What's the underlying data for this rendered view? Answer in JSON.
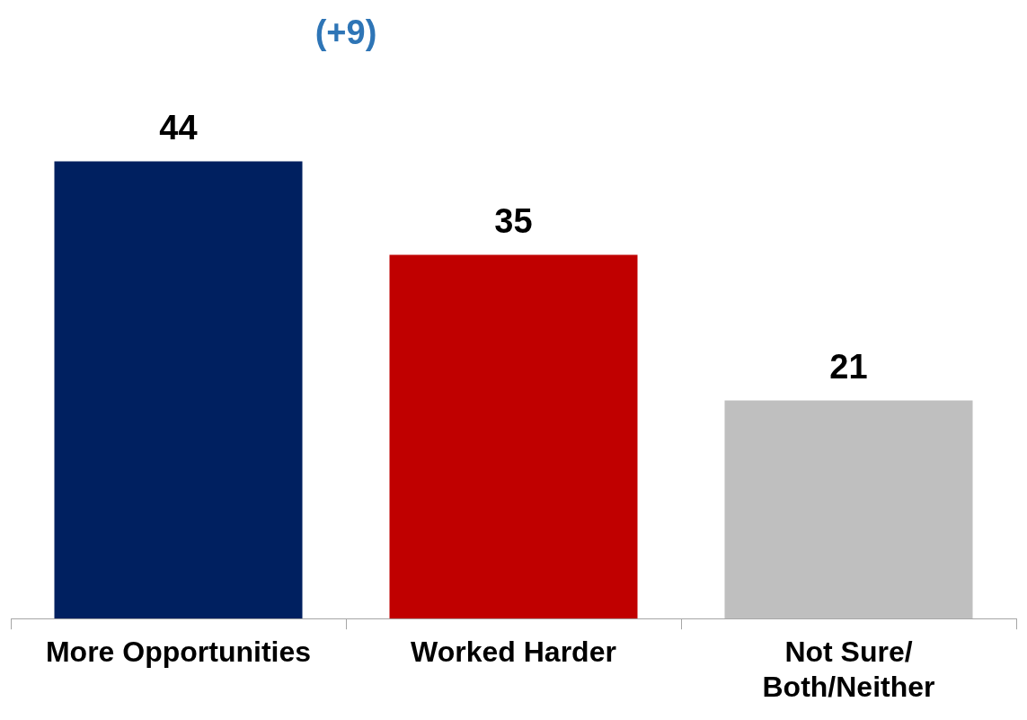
{
  "chart_data": {
    "type": "bar",
    "categories": [
      "More Opportunities",
      "Worked Harder",
      "Not Sure/ Both/Neither"
    ],
    "values": [
      44,
      35,
      21
    ],
    "colors": [
      "#002060",
      "#c00000",
      "#bfbfbf"
    ],
    "data_labels": true,
    "annotations": [
      "(+9)"
    ],
    "grid": false,
    "legend": false
  }
}
